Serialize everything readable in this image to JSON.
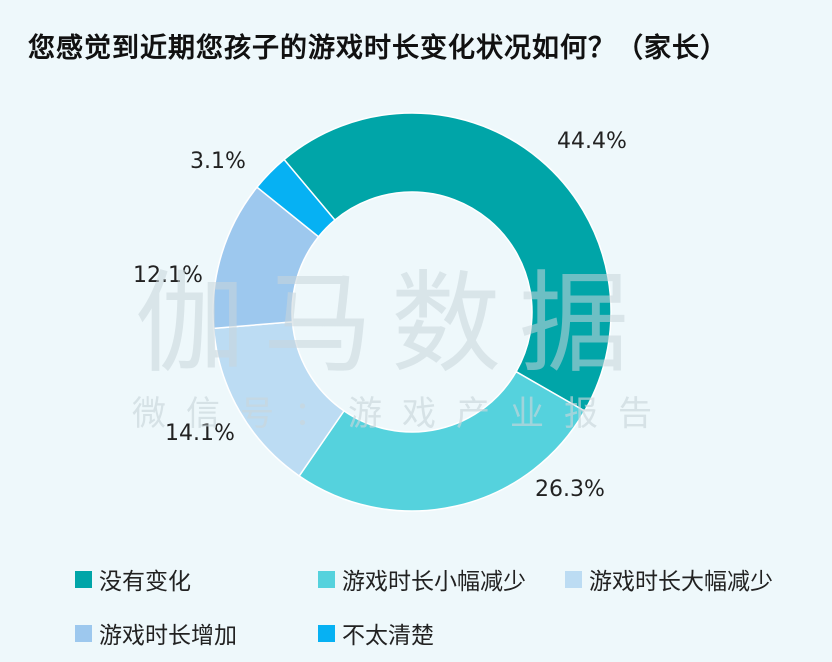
{
  "page": {
    "title": "您感觉到近期您孩子的游戏时长变化状况如何？（家长）",
    "watermark_main": "伽马数据",
    "watermark_sub": "微信号：游戏产业报告"
  },
  "chart_data": {
    "type": "pie",
    "donut": true,
    "title": "您感觉到近期您孩子的游戏时长变化状况如何？（家长）",
    "series": [
      {
        "name": "没有变化",
        "value": 44.4,
        "label": "44.4%",
        "color": "#00a5a8"
      },
      {
        "name": "游戏时长小幅减少",
        "value": 26.3,
        "label": "26.3%",
        "color": "#55d2dd"
      },
      {
        "name": "游戏时长大幅减少",
        "value": 14.1,
        "label": "14.1%",
        "color": "#bcdcf3"
      },
      {
        "name": "游戏时长增加",
        "value": 12.1,
        "label": "12.1%",
        "color": "#9dc8ee"
      },
      {
        "name": "不太清楚",
        "value": 3.1,
        "label": "3.1%",
        "color": "#06b1f3"
      }
    ],
    "legend_position": "bottom"
  }
}
